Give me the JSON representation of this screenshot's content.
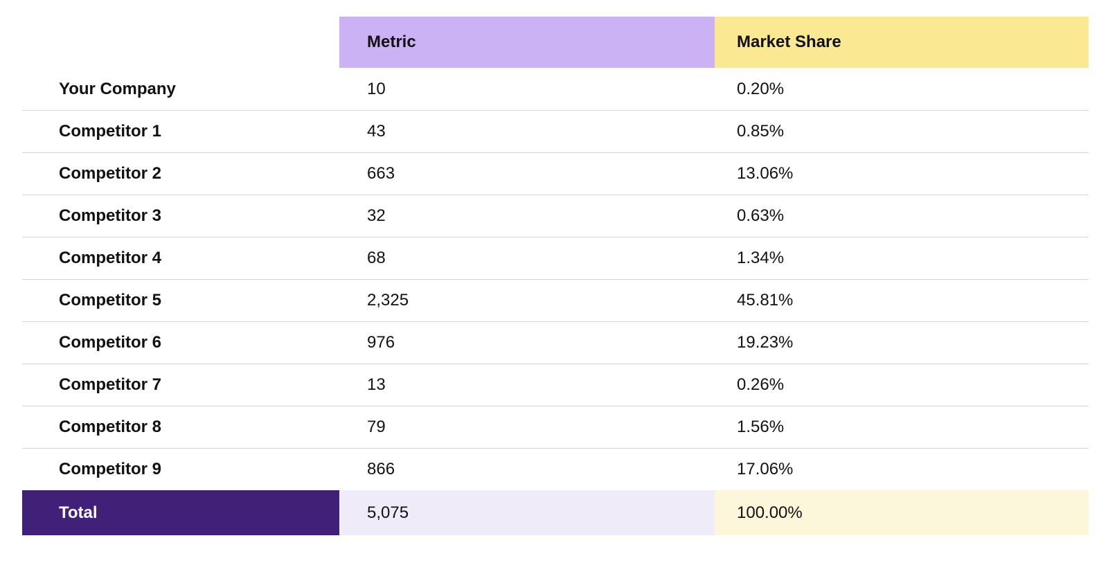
{
  "chart_data": {
    "type": "table",
    "columns": [
      "",
      "Metric",
      "Market Share"
    ],
    "header": {
      "label": "",
      "metric": "Metric",
      "share": "Market Share"
    },
    "rows": [
      {
        "label": "Your Company",
        "metric": "10",
        "share": "0.20%"
      },
      {
        "label": "Competitor 1",
        "metric": "43",
        "share": "0.85%"
      },
      {
        "label": "Competitor 2",
        "metric": "663",
        "share": "13.06%"
      },
      {
        "label": "Competitor 3",
        "metric": "32",
        "share": "0.63%"
      },
      {
        "label": "Competitor 4",
        "metric": "68",
        "share": "1.34%"
      },
      {
        "label": "Competitor 5",
        "metric": "2,325",
        "share": "45.81%"
      },
      {
        "label": "Competitor 6",
        "metric": "976",
        "share": "19.23%"
      },
      {
        "label": "Competitor 7",
        "metric": "13",
        "share": "0.26%"
      },
      {
        "label": "Competitor 8",
        "metric": "79",
        "share": "1.56%"
      },
      {
        "label": "Competitor 9",
        "metric": "866",
        "share": "17.06%"
      }
    ],
    "total": {
      "label": "Total",
      "metric": "5,075",
      "share": "100.00%"
    }
  },
  "colors": {
    "header_metric_bg": "#CBB2F4",
    "header_share_bg": "#FAE992",
    "total_label_bg": "#41207A",
    "total_metric_bg": "#EFEBF9",
    "total_share_bg": "#FCF6DB",
    "divider": "#D4D4D4",
    "text": "#111111",
    "total_label_text": "#FFFFFF"
  }
}
